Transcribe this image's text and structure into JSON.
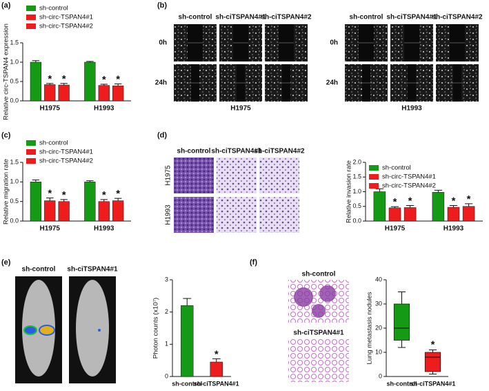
{
  "panel_labels": [
    "(a)",
    "(b)",
    "(c)",
    "(d)",
    "(e)",
    "(f)"
  ],
  "wound_images": {
    "columns": [
      "sh-control",
      "sh-ciTSPAN4#1",
      "sh-ciTSPAN4#2"
    ],
    "rows": [
      "0h",
      "24h"
    ],
    "cell_lines": [
      "H1975",
      "H1993"
    ]
  },
  "transwell_images": {
    "columns": [
      "sh-control",
      "sh-ciTSPAN4#1",
      "sh-ciTSPAN4#2"
    ],
    "rows": [
      "H1975",
      "H1993"
    ]
  },
  "mouse_images": {
    "labels": [
      "sh-control",
      "sh-ciTSPAN4#1"
    ]
  },
  "lung_images": {
    "labels": [
      "sh-control",
      "sh-ciTSPAN4#1"
    ]
  },
  "chart_data": [
    {
      "type": "bar",
      "y_label": "Relative circ-TSPAN4 expression",
      "categories": [
        "H1975",
        "H1993"
      ],
      "series": [
        {
          "name": "sh-control",
          "color": "#159a15",
          "values": [
            1.0,
            1.0
          ],
          "errors": [
            0.04,
            0.02
          ],
          "annotations": [
            null,
            null
          ]
        },
        {
          "name": "sh-circ-TSPAN4#1",
          "color": "#ee1c1c",
          "values": [
            0.42,
            0.4
          ],
          "errors": [
            0.03,
            0.03
          ],
          "annotations": [
            "*",
            "*"
          ]
        },
        {
          "name": "sh-circ-TSPAN4#2",
          "color": "#ee1c1c",
          "values": [
            0.41,
            0.39
          ],
          "errors": [
            0.04,
            0.05
          ],
          "annotations": [
            "*",
            "*"
          ]
        }
      ],
      "ylim": [
        0,
        1.5
      ],
      "yticks": [
        {
          "value": 0,
          "label": "0.0"
        },
        0.5,
        {
          "value": 1,
          "label": "1.0"
        },
        1.5
      ]
    },
    {
      "type": "bar",
      "y_label": "Relative migration rate",
      "categories": [
        "H1975",
        "H1993"
      ],
      "series": [
        {
          "name": "sh-control",
          "color": "#159a15",
          "values": [
            1.0,
            1.0
          ],
          "errors": [
            0.05,
            0.03
          ],
          "annotations": [
            null,
            null
          ]
        },
        {
          "name": "sh-circ-TSPAN4#1",
          "color": "#ee1c1c",
          "values": [
            0.52,
            0.5
          ],
          "errors": [
            0.07,
            0.05
          ],
          "annotations": [
            "*",
            "*"
          ]
        },
        {
          "name": "sh-circ-TSPAN4#2",
          "color": "#ee1c1c",
          "values": [
            0.5,
            0.52
          ],
          "errors": [
            0.05,
            0.06
          ],
          "annotations": [
            "*",
            "*"
          ]
        }
      ],
      "ylim": [
        0,
        1.5
      ],
      "yticks": [
        {
          "value": 0,
          "label": "0.0"
        },
        0.5,
        {
          "value": 1,
          "label": "1.0"
        },
        1.5
      ]
    },
    {
      "type": "bar",
      "y_label": "Relative invasion rate",
      "categories": [
        "H1975",
        "H1993"
      ],
      "series": [
        {
          "name": "sh-control",
          "color": "#159a15",
          "values": [
            1.0,
            0.98
          ],
          "errors": [
            0.1,
            0.07
          ],
          "annotations": [
            null,
            null
          ]
        },
        {
          "name": "sh-circ-TSPAN4#1",
          "color": "#ee1c1c",
          "values": [
            0.45,
            0.47
          ],
          "errors": [
            0.04,
            0.06
          ],
          "annotations": [
            "*",
            "*"
          ]
        },
        {
          "name": "sh-circ-TSPAN4#2",
          "color": "#ee1c1c",
          "values": [
            0.46,
            0.5
          ],
          "errors": [
            0.07,
            0.09
          ],
          "annotations": [
            "*",
            "*"
          ]
        }
      ],
      "ylim": [
        0,
        2
      ],
      "yticks": [
        {
          "value": 0,
          "label": "0.0"
        },
        0.5,
        {
          "value": 1,
          "label": "1.0"
        },
        1.5,
        {
          "value": 2,
          "label": "2.0"
        }
      ]
    },
    {
      "type": "bar",
      "y_label": "Photon counts (x10⁷)",
      "categories": [
        "sh-control",
        "sh-ciTSPAN4#1"
      ],
      "values": [
        2.2,
        0.45
      ],
      "errors": [
        0.22,
        0.1
      ],
      "colors": [
        "#159a15",
        "#ee1c1c"
      ],
      "annotations": [
        null,
        "*"
      ],
      "ylim": [
        0,
        3
      ],
      "yticks": [
        0,
        1,
        2,
        3
      ]
    },
    {
      "type": "box",
      "y_label": "Lung metastasis nodules",
      "categories": [
        "sh-control",
        "sh-ciTSPAN4#1"
      ],
      "boxes": [
        {
          "min": 12,
          "q1": 15,
          "median": 20,
          "q3": 30,
          "max": 35
        },
        {
          "min": 1,
          "q1": 2,
          "median": 8,
          "q3": 10,
          "max": 11
        }
      ],
      "colors": [
        "#159a15",
        "#ee1c1c"
      ],
      "annotations": [
        null,
        "*"
      ],
      "ylim": [
        0,
        40
      ],
      "yticks": [
        0,
        10,
        20,
        30,
        40
      ]
    }
  ]
}
